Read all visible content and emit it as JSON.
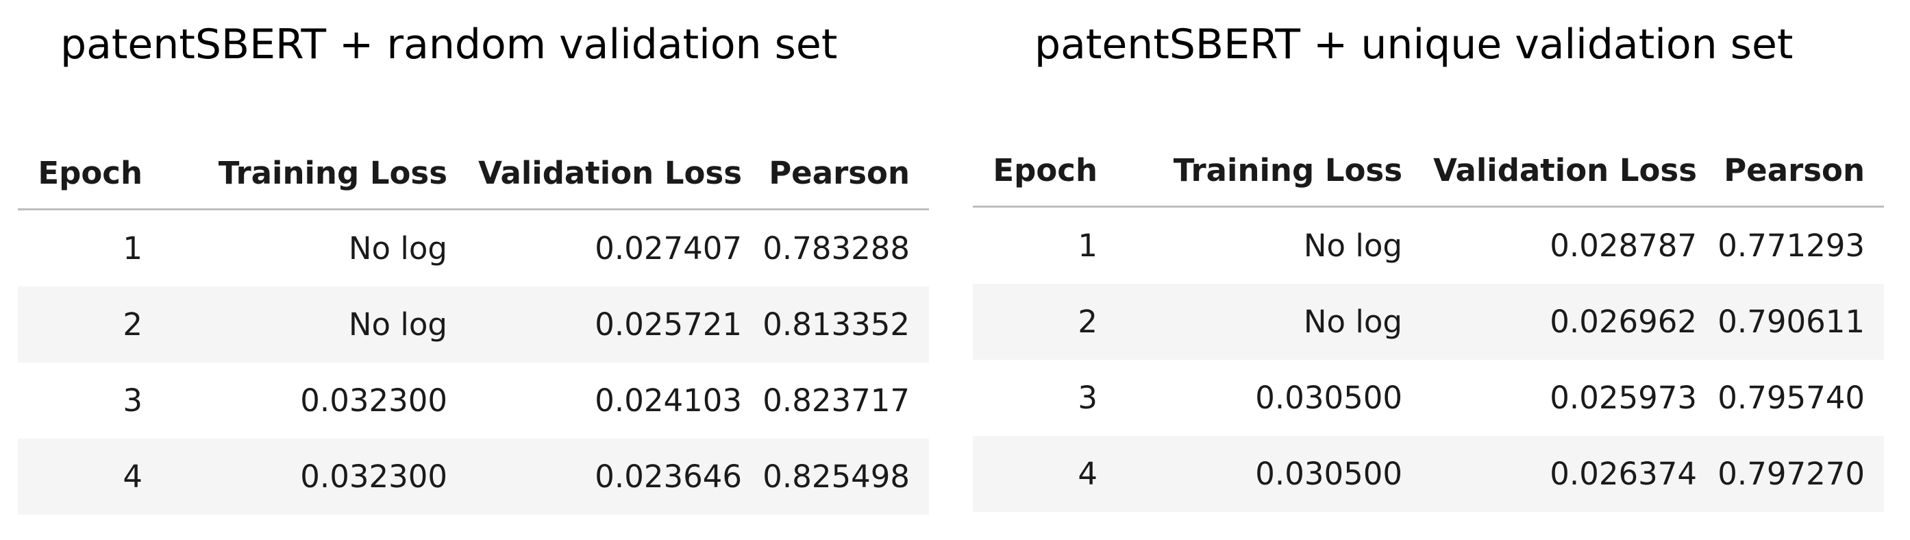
{
  "panels": [
    {
      "title": "patentSBERT + random validation set",
      "columns": [
        "Epoch",
        "Training Loss",
        "Validation Loss",
        "Pearson"
      ],
      "rows": [
        [
          "1",
          "No log",
          "0.027407",
          "0.783288"
        ],
        [
          "2",
          "No log",
          "0.025721",
          "0.813352"
        ],
        [
          "3",
          "0.032300",
          "0.024103",
          "0.823717"
        ],
        [
          "4",
          "0.032300",
          "0.023646",
          "0.825498"
        ]
      ]
    },
    {
      "title": "patentSBERT + unique validation set",
      "columns": [
        "Epoch",
        "Training Loss",
        "Validation Loss",
        "Pearson"
      ],
      "rows": [
        [
          "1",
          "No log",
          "0.028787",
          "0.771293"
        ],
        [
          "2",
          "No log",
          "0.026962",
          "0.790611"
        ],
        [
          "3",
          "0.030500",
          "0.025973",
          "0.795740"
        ],
        [
          "4",
          "0.030500",
          "0.026374",
          "0.797270"
        ]
      ]
    }
  ]
}
